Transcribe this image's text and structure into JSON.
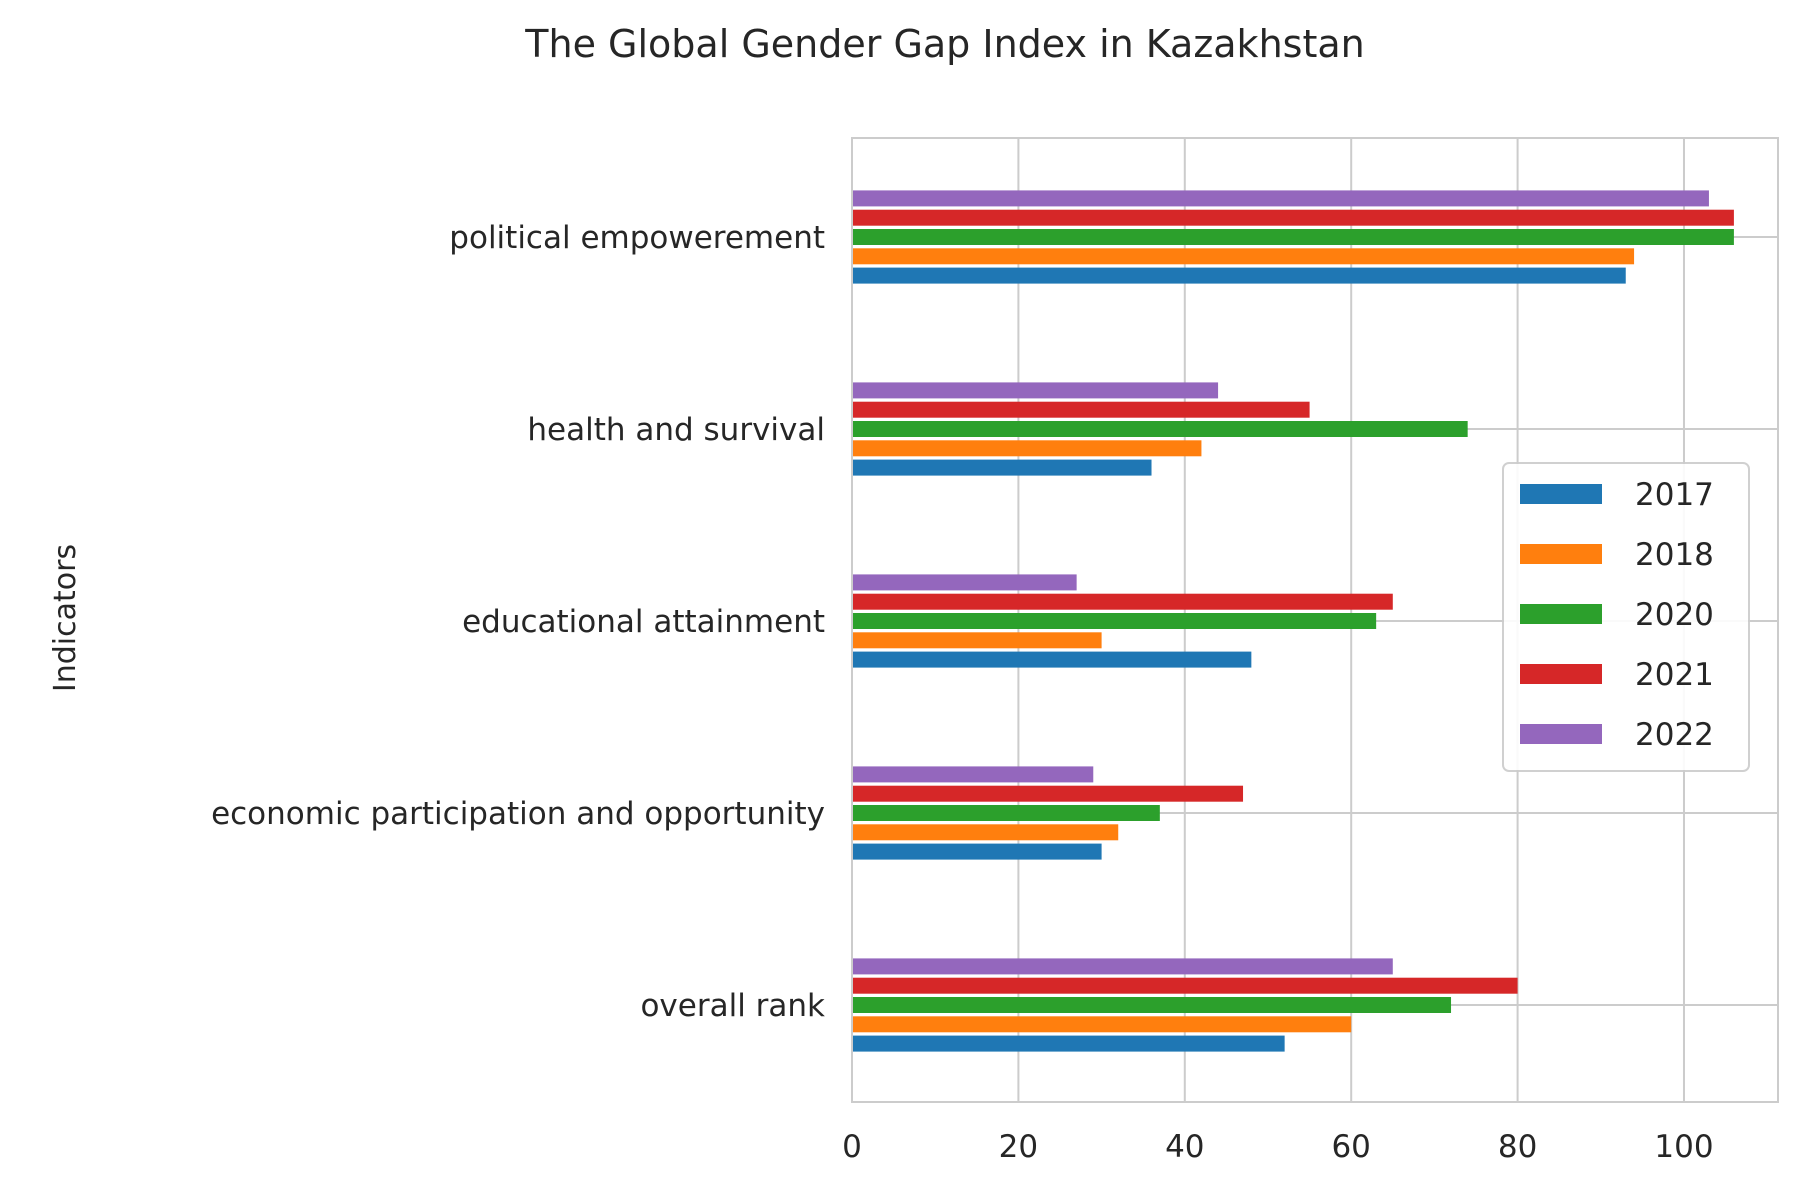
{
  "chart_data": {
    "type": "bar",
    "orientation": "horizontal",
    "title": "The Global Gender Gap Index in Kazakhstan",
    "xlabel": "",
    "ylabel": "Indicators",
    "categories": [
      "overall rank",
      "economic participation and opportunity",
      "educational attainment",
      "health and survival",
      "political empowerement"
    ],
    "series": [
      {
        "name": "2017",
        "color": "#1f77b4",
        "values": [
          52,
          30,
          48,
          36,
          93
        ]
      },
      {
        "name": "2018",
        "color": "#ff7f0e",
        "values": [
          60,
          32,
          30,
          42,
          94
        ]
      },
      {
        "name": "2020",
        "color": "#2ca02c",
        "values": [
          72,
          37,
          63,
          74,
          106
        ]
      },
      {
        "name": "2021",
        "color": "#d62728",
        "values": [
          80,
          47,
          65,
          55,
          106
        ]
      },
      {
        "name": "2022",
        "color": "#9467bd",
        "values": [
          65,
          29,
          27,
          44,
          103
        ]
      }
    ],
    "xlim": [
      0,
      111.3
    ],
    "xticks": [
      0,
      20,
      40,
      60,
      80,
      100
    ],
    "grid": true,
    "legend_position": "center-right"
  }
}
